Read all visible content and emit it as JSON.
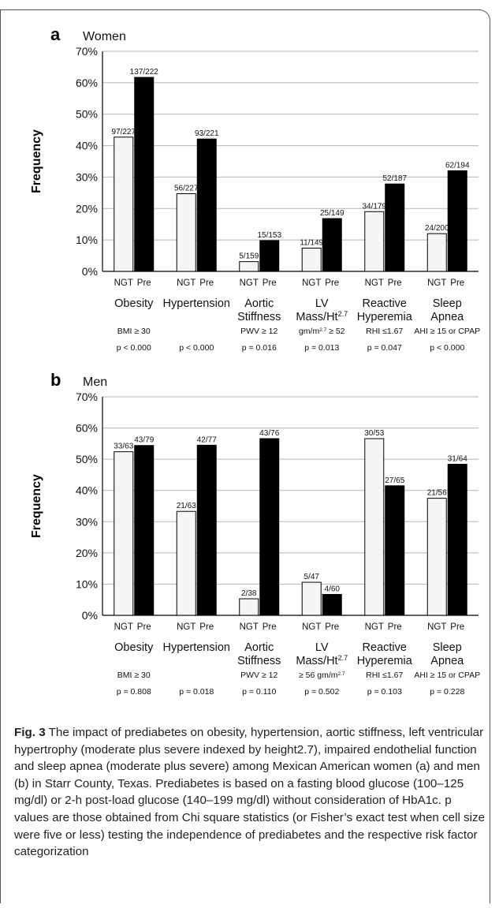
{
  "chart_data": [
    {
      "type": "bar",
      "panel_letter": "a",
      "title": "Women",
      "ylabel": "Frequency",
      "ylim": [
        0,
        70
      ],
      "yticks": [
        "0%",
        "10%",
        "20%",
        "30%",
        "40%",
        "50%",
        "60%",
        "70%"
      ],
      "categories": [
        {
          "label": [
            "Obesity"
          ],
          "criterion": "BMI ≥ 30",
          "p": "p < 0.000"
        },
        {
          "label": [
            "Hypertension"
          ],
          "criterion": "",
          "p": "p < 0.000"
        },
        {
          "label": [
            "Aortic",
            "Stiffness"
          ],
          "criterion": "PWV ≥ 12",
          "p": "p = 0.016"
        },
        {
          "label": [
            "LV",
            "Mass/Ht2.7"
          ],
          "criterion": "gm/m2.7 ≥ 52",
          "p": "p = 0.013"
        },
        {
          "label": [
            "Reactive",
            "Hyperemia"
          ],
          "criterion": "RHI ≤1.67",
          "p": "p = 0.047"
        },
        {
          "label": [
            "Sleep",
            "Apnea"
          ],
          "criterion": "AHI ≥ 15 or CPAP",
          "p": "p < 0.000"
        }
      ],
      "bar_labels": [
        "NGT",
        "Pre"
      ],
      "series": [
        {
          "name": "NGT",
          "values": [
            42.7,
            24.7,
            3.1,
            7.4,
            19.0,
            12.0
          ],
          "labels": [
            "97/227",
            "56/227",
            "5/159",
            "11/149",
            "34/179",
            "24/200"
          ]
        },
        {
          "name": "Pre",
          "values": [
            61.7,
            42.1,
            9.8,
            16.8,
            27.8,
            32.0
          ],
          "labels": [
            "137/222",
            "93/221",
            "15/153",
            "25/149",
            "52/187",
            "62/194"
          ]
        }
      ],
      "colors": {
        "NGT": "#f5f5f5",
        "Pre": "#000000"
      }
    },
    {
      "type": "bar",
      "panel_letter": "b",
      "title": "Men",
      "ylabel": "Frequency",
      "ylim": [
        0,
        70
      ],
      "yticks": [
        "0%",
        "10%",
        "20%",
        "30%",
        "40%",
        "50%",
        "60%",
        "70%"
      ],
      "categories": [
        {
          "label": [
            "Obesity"
          ],
          "criterion": "BMI ≥ 30",
          "p": "p = 0.808"
        },
        {
          "label": [
            "Hypertension"
          ],
          "criterion": "",
          "p": "p = 0.018"
        },
        {
          "label": [
            "Aortic",
            "Stiffness"
          ],
          "criterion": "PWV ≥ 12",
          "p": "p = 0.110"
        },
        {
          "label": [
            "LV",
            "Mass/Ht2.7"
          ],
          "criterion": "≥ 56 gm/m2.7",
          "p": "p = 0.502"
        },
        {
          "label": [
            "Reactive",
            "Hyperemia"
          ],
          "criterion": "RHI ≤1.67",
          "p": "p = 0.103"
        },
        {
          "label": [
            "Sleep",
            "Apnea"
          ],
          "criterion": "AHI ≥ 15 or CPAP",
          "p": "p = 0.228"
        }
      ],
      "bar_labels": [
        "NGT",
        "Pre"
      ],
      "series": [
        {
          "name": "NGT",
          "values": [
            52.4,
            33.3,
            5.3,
            10.6,
            56.6,
            37.5
          ],
          "labels": [
            "33/63",
            "21/63",
            "2/38",
            "5/47",
            "30/53",
            "21/56"
          ]
        },
        {
          "name": "Pre",
          "values": [
            54.4,
            54.5,
            56.6,
            6.7,
            41.5,
            48.4
          ],
          "labels": [
            "43/79",
            "42/77",
            "43/76",
            "4/60",
            "27/65",
            "31/64"
          ]
        }
      ],
      "colors": {
        "NGT": "#f5f5f5",
        "Pre": "#000000"
      }
    }
  ],
  "caption": {
    "label": "Fig. 3",
    "text": "The impact of prediabetes on obesity, hypertension, aortic stiffness, left ventricular hypertrophy (moderate plus severe indexed by height2.7), impaired endothelial function and sleep apnea (moderate plus severe) among Mexican American women (a) and men (b) in Starr County, Texas. Prediabetes is based on a fasting blood glucose (100–125 mg/dl) or 2-h post-load glucose (140–199 mg/dl) without consideration of HbA1c. p values are those obtained from Chi square statistics (or Fisher’s exact test when cell size were five or less) testing the independence of prediabetes and the respective risk factor categorization"
  }
}
